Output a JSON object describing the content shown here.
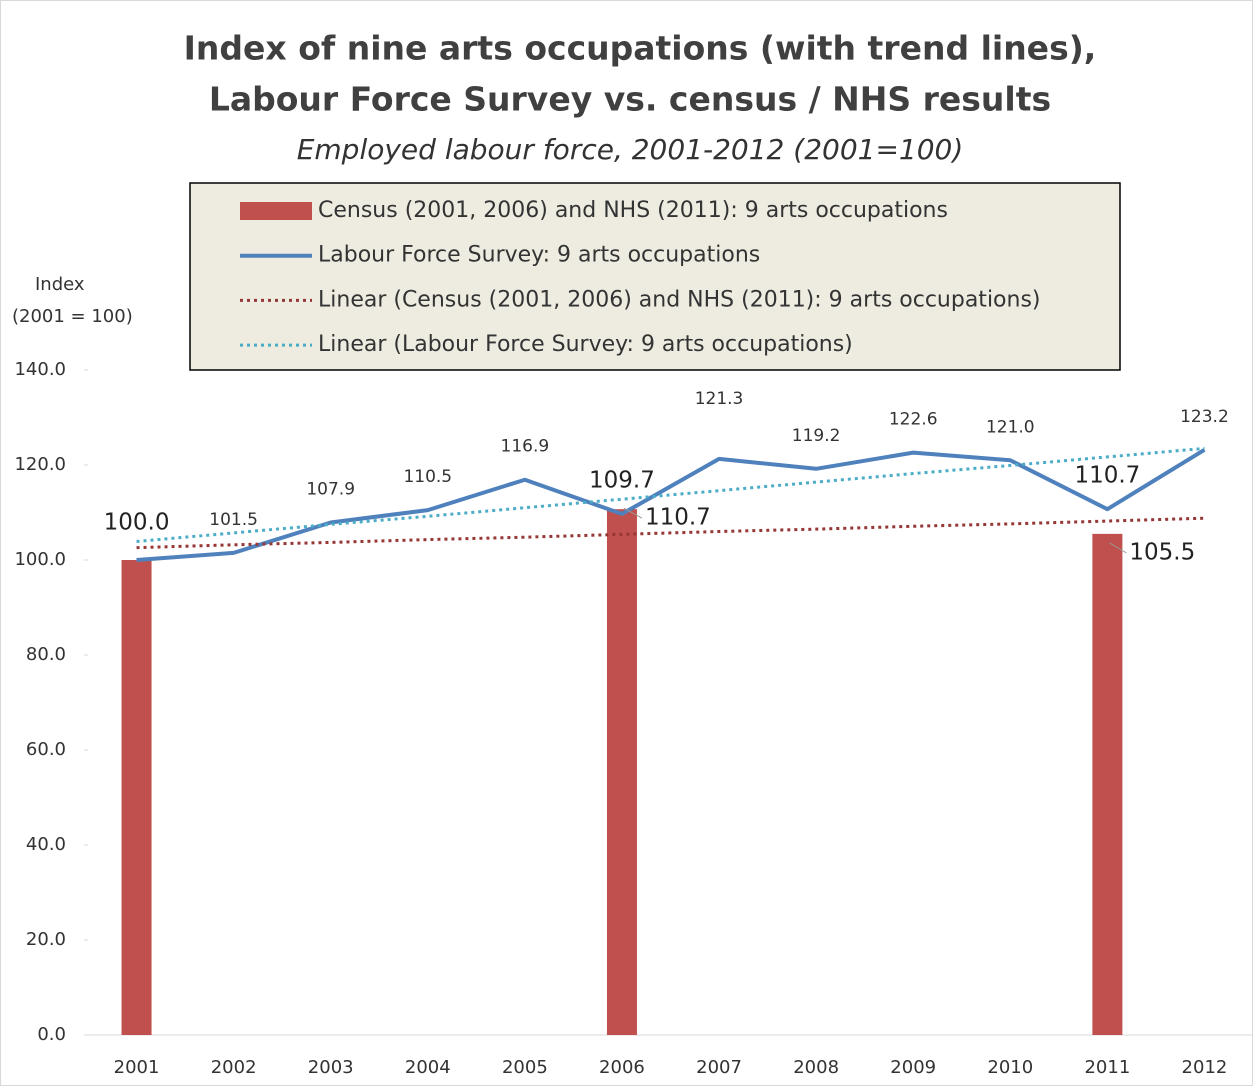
{
  "chart_data": {
    "type": "combo",
    "title": [
      "Index of nine arts occupations (with trend lines),",
      "Labour Force Survey vs. census / NHS results"
    ],
    "subtitle": "Employed labour force, 2001-2012 (2001=100)",
    "y_label": [
      "Index",
      "(2001 = 100)"
    ],
    "categories": [
      "2001",
      "2002",
      "2003",
      "2004",
      "2005",
      "2006",
      "2007",
      "2008",
      "2009",
      "2010",
      "2011",
      "2012"
    ],
    "ylim": [
      0,
      140
    ],
    "yticks": [
      {
        "value": 0,
        "label": "0.0"
      },
      {
        "value": 20,
        "label": "20.0"
      },
      {
        "value": 40,
        "label": "40.0"
      },
      {
        "value": 60,
        "label": "60.0"
      },
      {
        "value": 80,
        "label": "80.0"
      },
      {
        "value": 100,
        "label": "100.0"
      },
      {
        "value": 120,
        "label": "120.0"
      },
      {
        "value": 140,
        "label": "140.0"
      }
    ],
    "grid": false,
    "series": [
      {
        "name": "Census (2001, 2006) and NHS (2011): 9 arts occupations",
        "type": "bar",
        "color": "#c0504d",
        "values": [
          100,
          null,
          null,
          null,
          null,
          110.7,
          null,
          null,
          null,
          null,
          105.5,
          null
        ],
        "value_labels": [
          "100.0",
          null,
          null,
          null,
          null,
          "110.7",
          null,
          null,
          null,
          null,
          "105.5",
          null
        ]
      },
      {
        "name": "Labour Force Survey: 9 arts occupations",
        "type": "line",
        "color": "#4f81bd",
        "values": [
          100,
          101.5,
          107.9,
          110.5,
          116.9,
          109.7,
          121.3,
          119.2,
          122.6,
          121,
          110.7,
          123.2
        ],
        "value_labels": [
          null,
          "101.5",
          "107.9",
          "110.5",
          "116.9",
          "109.7",
          "121.3",
          "119.2",
          "122.6",
          "121.0",
          "110.7",
          "123.2"
        ]
      },
      {
        "name": "Linear (Census (2001, 2006) and NHS (2011): 9 arts occupations)",
        "type": "line",
        "dash": "dotted",
        "color": "#953735",
        "values": [
          102.6,
          103.2,
          103.7,
          104.3,
          104.8,
          105.4,
          106.0,
          106.5,
          107.1,
          107.6,
          108.2,
          108.8
        ]
      },
      {
        "name": "Linear (Labour Force Survey: 9 arts occupations)",
        "type": "line",
        "dash": "dotted",
        "color": "#4bacc6",
        "values": [
          103.9,
          105.7,
          107.5,
          109.2,
          111.0,
          112.8,
          114.6,
          116.4,
          118.2,
          119.9,
          121.7,
          123.5
        ]
      }
    ]
  }
}
